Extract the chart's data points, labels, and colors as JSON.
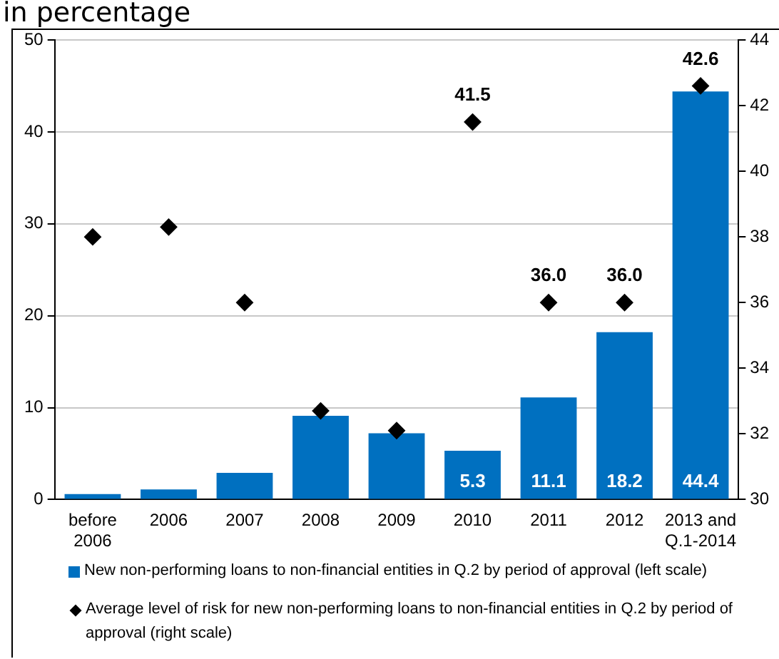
{
  "chart_data": {
    "type": "bar",
    "title": "in percentage",
    "categories": [
      "before\n2006",
      "2006",
      "2007",
      "2008",
      "2009",
      "2010",
      "2011",
      "2012",
      "2013 and\nQ.1-2014"
    ],
    "series": [
      {
        "name": "New non-performing loans to non-financial entities in Q.2 by period of approval (left scale)",
        "color": "#0070c0",
        "values": [
          0.6,
          1.1,
          2.9,
          9.1,
          7.2,
          5.3,
          11.1,
          18.2,
          44.4
        ],
        "value_labels": [
          null,
          null,
          null,
          null,
          null,
          "5.3",
          "11.1",
          "18.2",
          "44.4"
        ]
      },
      {
        "name": "Average level of risk for new non-performing loans to non-financial entities in Q.2 by period of approval (right scale)",
        "type": "scatter",
        "axis": "y2",
        "marker": "diamond",
        "color": "#000000",
        "values": [
          38.0,
          38.3,
          36.0,
          32.7,
          32.1,
          41.5,
          36.0,
          36.0,
          42.6
        ],
        "value_labels": [
          null,
          null,
          null,
          null,
          null,
          "41.5",
          "36.0",
          "36.0",
          "42.6"
        ]
      }
    ],
    "ylim": [
      0,
      50
    ],
    "yticks": [
      0,
      10,
      20,
      30,
      40,
      50
    ],
    "y2lim": [
      30,
      44
    ],
    "y2ticks": [
      30,
      32,
      34,
      36,
      38,
      40,
      42,
      44
    ],
    "grid": "y",
    "legend": "bottom"
  }
}
